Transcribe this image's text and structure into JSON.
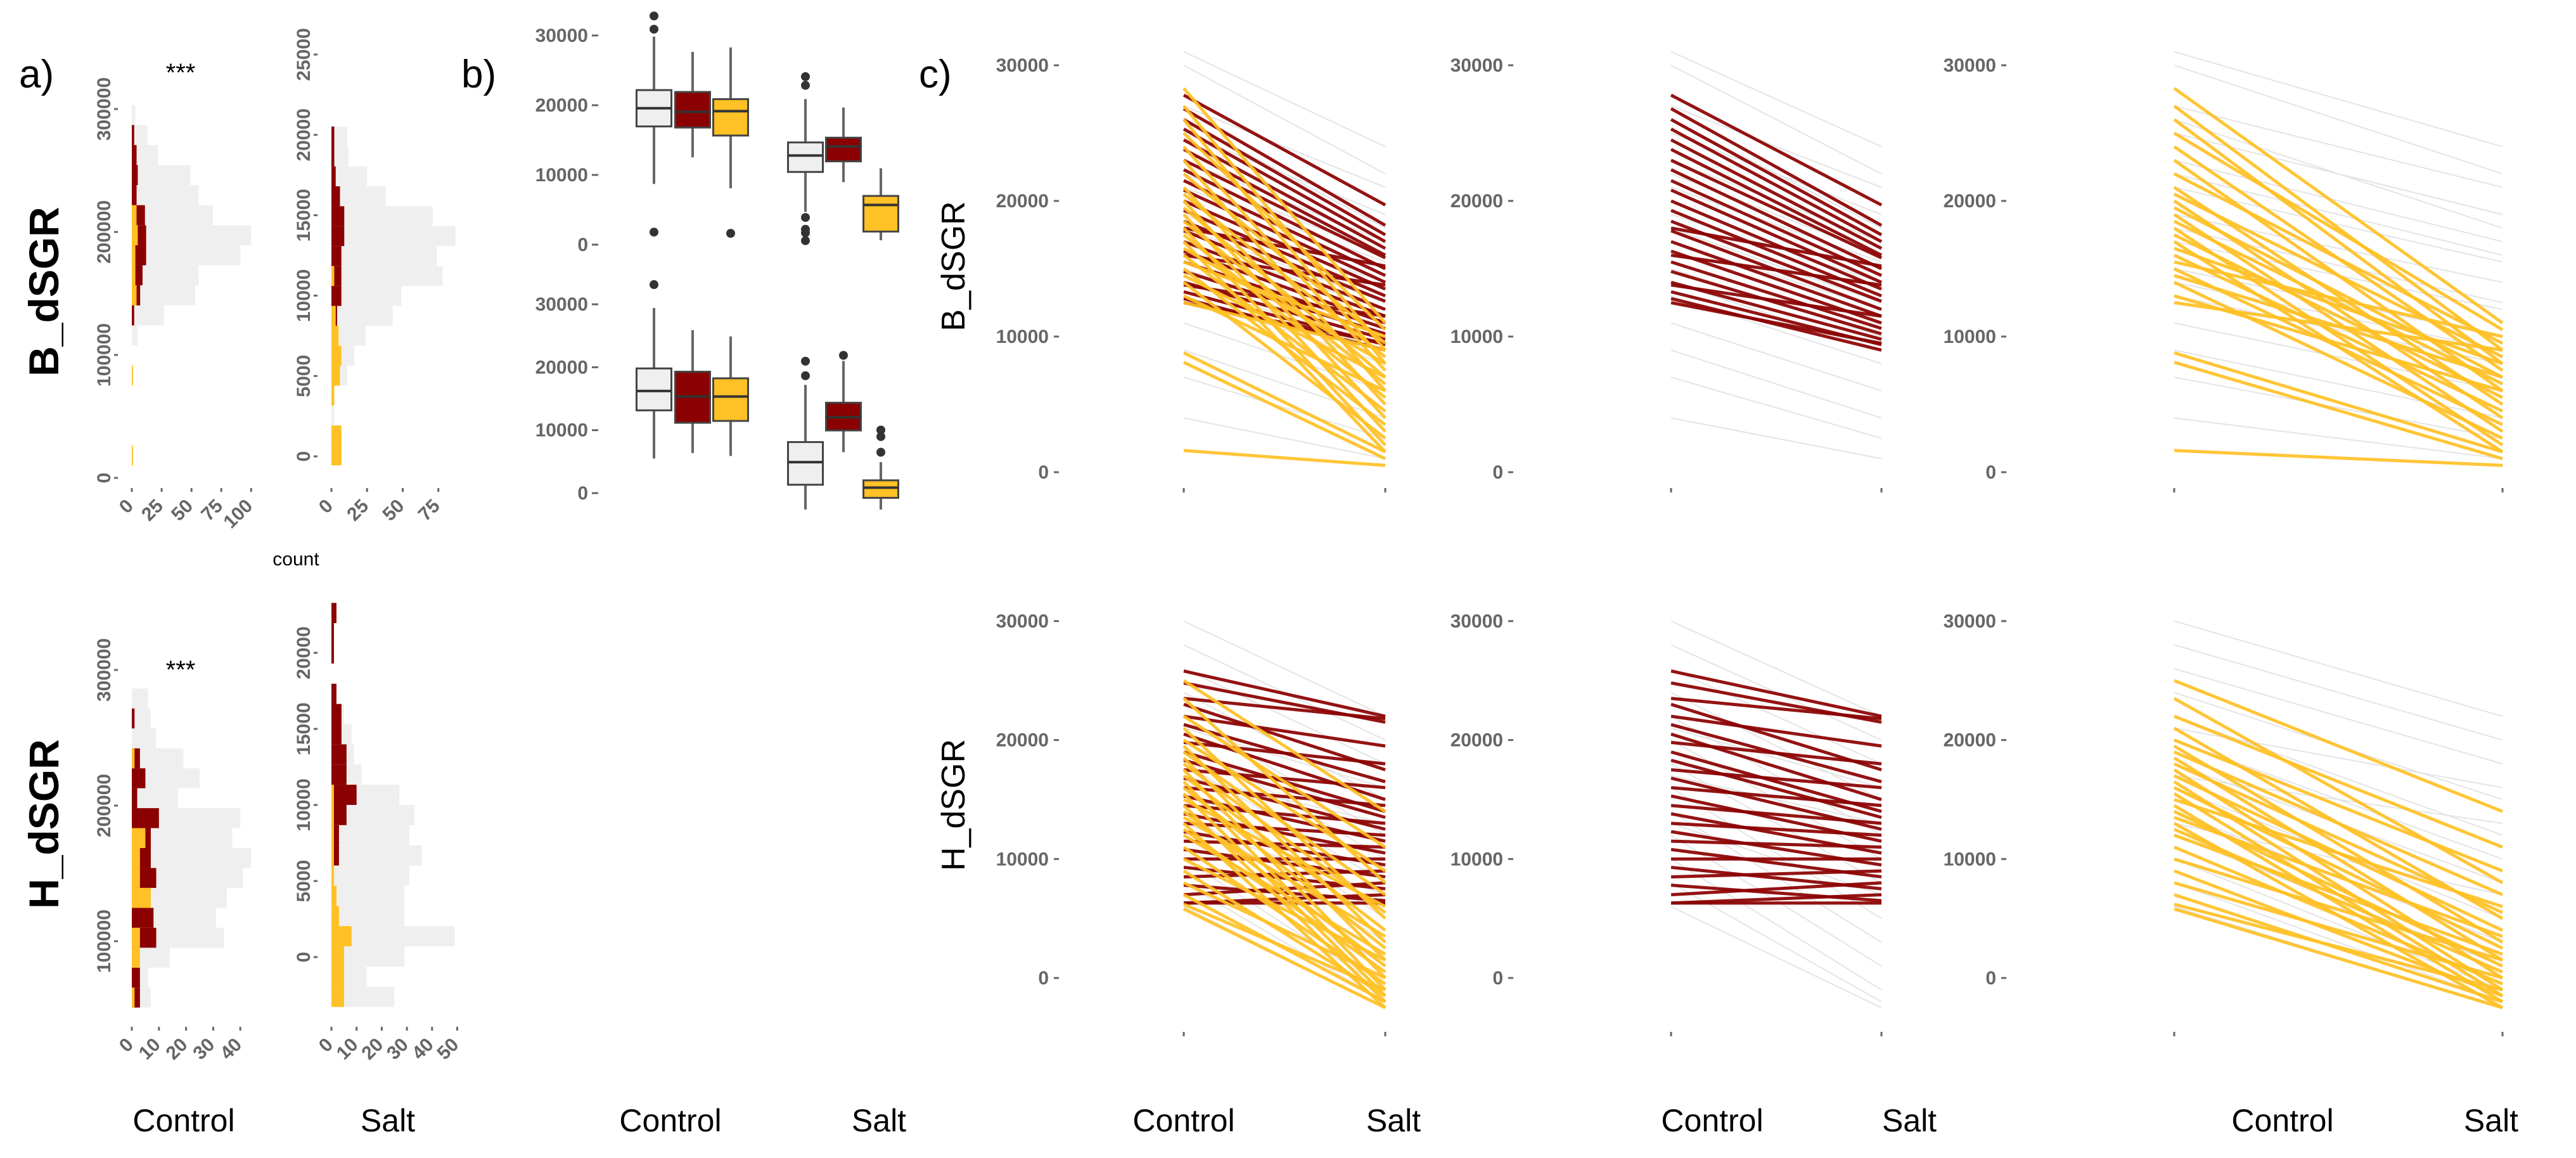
{
  "labels": {
    "panel_a": "a)",
    "panel_b": "b)",
    "panel_c": "c)",
    "signif_top": "***",
    "signif_bottom": "***",
    "count": "count",
    "row_b": "B_dSGR",
    "row_h": "H_dSGR",
    "control": "Control",
    "salt": "Salt"
  },
  "colors": {
    "all": "#efefef",
    "red": "#8b0000",
    "yellow": "#ffc125",
    "axis": "#666666"
  },
  "chart_data": [
    {
      "type": "histogram",
      "id": "a-B-control",
      "row": "B_dSGR",
      "group": "Control",
      "orientation": "horizontal",
      "y_ticks": [
        0,
        100000,
        200000,
        300000
      ],
      "x_ticks": [
        0,
        25,
        50,
        75,
        100
      ],
      "xlabel": "count",
      "bin_start": 9900,
      "bin_width": 16300,
      "series": {
        "all": [
          0,
          0,
          0,
          0,
          0,
          0,
          5,
          27,
          53,
          56,
          91,
          100,
          68,
          56,
          49,
          22,
          13,
          3
        ],
        "red": [
          0,
          0,
          0,
          0,
          0,
          0,
          0,
          2,
          7,
          9,
          12,
          12,
          11,
          4,
          5,
          4,
          2,
          0
        ],
        "yellow": [
          1,
          0,
          0,
          0,
          1,
          0,
          0,
          0,
          4,
          3,
          3,
          5,
          4,
          0,
          0,
          0,
          0,
          0
        ]
      }
    },
    {
      "type": "histogram",
      "id": "a-B-salt",
      "row": "B_dSGR",
      "group": "Salt",
      "orientation": "horizontal",
      "y_ticks": [
        0,
        5000,
        10000,
        15000,
        20000,
        25000
      ],
      "x_ticks": [
        0,
        25,
        50,
        75
      ],
      "bin_start": -560,
      "bin_width": 1240,
      "series": {
        "all": [
          0,
          2,
          2,
          2,
          11,
          16,
          24,
          43,
          49,
          78,
          74,
          87,
          71,
          38,
          25,
          12,
          11
        ],
        "red": [
          0,
          0,
          0,
          0,
          0,
          0,
          0,
          4,
          7,
          7,
          7,
          9,
          9,
          6,
          3,
          2,
          2
        ],
        "yellow": [
          7,
          7,
          0,
          2,
          6,
          7,
          5,
          3,
          0,
          2,
          0,
          0,
          0,
          0,
          0,
          0,
          0
        ]
      }
    },
    {
      "type": "histogram",
      "id": "a-H-control",
      "row": "H_dSGR",
      "group": "Control",
      "orientation": "horizontal",
      "y_ticks": [
        100000,
        200000,
        300000
      ],
      "x_ticks": [
        0,
        10,
        20,
        30,
        40
      ],
      "bin_start": 51100,
      "bin_width": 14700,
      "series": {
        "all": [
          7,
          6,
          14,
          34,
          31,
          35,
          41,
          44,
          37,
          40,
          17,
          25,
          19,
          9,
          7,
          6
        ],
        "red": [
          3,
          3,
          2,
          9,
          8,
          5,
          9,
          7,
          7,
          10,
          2,
          5,
          3,
          0,
          1,
          0
        ],
        "yellow": [
          1,
          0,
          3,
          3,
          0,
          7,
          3,
          3,
          5,
          0,
          0,
          0,
          1,
          0,
          0,
          0
        ]
      }
    },
    {
      "type": "histogram",
      "id": "a-H-salt",
      "row": "H_dSGR",
      "group": "Salt",
      "orientation": "horizontal",
      "y_ticks": [
        0,
        5000,
        10000,
        15000,
        20000
      ],
      "x_ticks": [
        0,
        10,
        20,
        30,
        40,
        50
      ],
      "bin_start": -3278,
      "bin_width": 1328,
      "series": {
        "all": [
          25,
          14,
          29,
          49,
          29,
          29,
          31,
          36,
          31,
          33,
          27,
          12,
          9,
          8,
          5,
          2,
          0,
          0,
          0,
          0
        ],
        "red": [
          0,
          0,
          0,
          0,
          0,
          0,
          0,
          3,
          3,
          6,
          10,
          6,
          6,
          4,
          4,
          2,
          0,
          1,
          1,
          2
        ],
        "yellow": [
          5,
          5,
          5,
          8,
          3,
          2,
          1,
          1,
          1,
          1,
          1,
          0,
          0,
          0,
          0,
          0,
          0,
          0,
          0,
          0
        ]
      }
    },
    {
      "type": "boxplot",
      "id": "b-B",
      "row": "B_dSGR",
      "categories": [
        "Control",
        "Salt"
      ],
      "y_ticks": [
        0,
        10000,
        20000,
        30000
      ],
      "boxes": [
        {
          "cat": "Control",
          "series": "all",
          "q1": 16960,
          "median": 19565,
          "q3": 22170,
          "lo": 8710,
          "hi": 29840,
          "outliers": [
            1800,
            30900,
            32800
          ]
        },
        {
          "cat": "Control",
          "series": "red",
          "q1": 16800,
          "median": 19040,
          "q3": 21900,
          "lo": 12520,
          "hi": 27650,
          "outliers": []
        },
        {
          "cat": "Control",
          "series": "yellow",
          "q1": 15650,
          "median": 19150,
          "q3": 20870,
          "lo": 8090,
          "hi": 28280,
          "outliers": [
            1620
          ]
        },
        {
          "cat": "Salt",
          "series": "all",
          "q1": 10430,
          "median": 12780,
          "q3": 14660,
          "lo": 4700,
          "hi": 20870,
          "outliers": [
            24100,
            22850,
            3900,
            2200,
            1700,
            570
          ]
        },
        {
          "cat": "Salt",
          "series": "red",
          "q1": 11950,
          "median": 14090,
          "q3": 15340,
          "lo": 8970,
          "hi": 19670,
          "outliers": []
        },
        {
          "cat": "Salt",
          "series": "yellow",
          "q1": 1880,
          "median": 5690,
          "q3": 6990,
          "lo": 630,
          "hi": 10960,
          "outliers": []
        }
      ]
    },
    {
      "type": "boxplot",
      "id": "b-H",
      "row": "H_dSGR",
      "categories": [
        "Control",
        "Salt"
      ],
      "y_ticks": [
        0,
        10000,
        20000,
        30000
      ],
      "boxes": [
        {
          "cat": "Control",
          "series": "all",
          "q1": 13150,
          "median": 16220,
          "q3": 19810,
          "lo": 5500,
          "hi": 29420,
          "outliers": [
            33130
          ]
        },
        {
          "cat": "Control",
          "series": "red",
          "q1": 11180,
          "median": 15350,
          "q3": 19290,
          "lo": 6370,
          "hi": 25890,
          "outliers": []
        },
        {
          "cat": "Control",
          "series": "yellow",
          "q1": 11470,
          "median": 15350,
          "q3": 18240,
          "lo": 5910,
          "hi": 24900,
          "outliers": []
        },
        {
          "cat": "Salt",
          "series": "all",
          "q1": 1330,
          "median": 4920,
          "q3": 8110,
          "lo": -2610,
          "hi": 17200,
          "outliers": [
            20960,
            18650
          ]
        },
        {
          "cat": "Salt",
          "series": "red",
          "q1": 9960,
          "median": 12050,
          "q3": 14360,
          "lo": 6490,
          "hi": 21000,
          "outliers": [
            21890
          ]
        },
        {
          "cat": "Salt",
          "series": "yellow",
          "q1": -750,
          "median": 870,
          "q3": 2030,
          "lo": -2610,
          "hi": 4920,
          "outliers": [
            6490,
            8980,
            10020
          ]
        }
      ]
    },
    {
      "type": "line",
      "id": "c-B",
      "row": "B_dSGR",
      "x": [
        "Control",
        "Salt"
      ],
      "y_ticks": [
        0,
        10000,
        20000,
        30000
      ],
      "panels": [
        "all",
        "red",
        "yellow"
      ],
      "all": [
        [
          31000,
          24000
        ],
        [
          30000,
          22000
        ],
        [
          27000,
          21000
        ],
        [
          25000,
          19000
        ],
        [
          23000,
          17000
        ],
        [
          21000,
          15500
        ],
        [
          19000,
          14000
        ],
        [
          17000,
          12000
        ],
        [
          15000,
          10000
        ],
        [
          13000,
          8000
        ],
        [
          11000,
          6000
        ],
        [
          9000,
          4000
        ],
        [
          7000,
          2500
        ],
        [
          4000,
          1000
        ],
        [
          26000,
          18000
        ],
        [
          22000,
          16000
        ],
        [
          18000,
          12500
        ],
        [
          14000,
          9000
        ]
      ],
      "red": [
        [
          27800,
          19700
        ],
        [
          26800,
          18200
        ],
        [
          26000,
          17500
        ],
        [
          25300,
          17000
        ],
        [
          24500,
          16500
        ],
        [
          23800,
          16000
        ],
        [
          23000,
          15800
        ],
        [
          22300,
          15000
        ],
        [
          21500,
          14500
        ],
        [
          20800,
          14000
        ],
        [
          20000,
          13500
        ],
        [
          19300,
          13000
        ],
        [
          18500,
          12600
        ],
        [
          17800,
          12000
        ],
        [
          17000,
          11500
        ],
        [
          16300,
          11000
        ],
        [
          15500,
          10600
        ],
        [
          14800,
          10200
        ],
        [
          14000,
          9800
        ],
        [
          13300,
          9400
        ],
        [
          12800,
          9000
        ],
        [
          12500,
          9500
        ],
        [
          13800,
          11500
        ],
        [
          16000,
          13800
        ],
        [
          18000,
          15200
        ]
      ],
      "yellow": [
        [
          28300,
          11000
        ],
        [
          27000,
          9000
        ],
        [
          26000,
          8000
        ],
        [
          25000,
          10500
        ],
        [
          24000,
          7500
        ],
        [
          23000,
          6000
        ],
        [
          22000,
          9500
        ],
        [
          21000,
          5000
        ],
        [
          20500,
          8500
        ],
        [
          20000,
          4000
        ],
        [
          19500,
          7000
        ],
        [
          19000,
          3000
        ],
        [
          18500,
          6500
        ],
        [
          18000,
          2000
        ],
        [
          17500,
          5500
        ],
        [
          17000,
          1500
        ],
        [
          16500,
          8000
        ],
        [
          16000,
          4500
        ],
        [
          15500,
          10000
        ],
        [
          15000,
          3500
        ],
        [
          14500,
          7000
        ],
        [
          14000,
          2500
        ],
        [
          13000,
          6000
        ],
        [
          12500,
          9000
        ],
        [
          8800,
          1500
        ],
        [
          8100,
          1000
        ],
        [
          1600,
          500
        ]
      ]
    },
    {
      "type": "line",
      "id": "c-H",
      "row": "H_dSGR",
      "x": [
        "Control",
        "Salt"
      ],
      "y_ticks": [
        0,
        10000,
        20000,
        30000
      ],
      "panels": [
        "all",
        "red",
        "yellow"
      ],
      "all": [
        [
          30000,
          22000
        ],
        [
          28000,
          20000
        ],
        [
          26000,
          18000
        ],
        [
          24000,
          15000
        ],
        [
          22000,
          12000
        ],
        [
          20000,
          10000
        ],
        [
          18000,
          8000
        ],
        [
          16000,
          5000
        ],
        [
          14000,
          3000
        ],
        [
          12000,
          1000
        ],
        [
          10000,
          -1000
        ],
        [
          8000,
          -2000
        ],
        [
          6000,
          -2500
        ],
        [
          21000,
          16000
        ],
        [
          17000,
          13000
        ],
        [
          13000,
          7000
        ]
      ],
      "red": [
        [
          25800,
          22000
        ],
        [
          24800,
          21500
        ],
        [
          23500,
          21800
        ],
        [
          23000,
          17500
        ],
        [
          22000,
          19500
        ],
        [
          21300,
          16500
        ],
        [
          20500,
          15000
        ],
        [
          19800,
          18000
        ],
        [
          19000,
          14000
        ],
        [
          18300,
          13500
        ],
        [
          17500,
          16000
        ],
        [
          16800,
          12500
        ],
        [
          16000,
          14500
        ],
        [
          15300,
          11500
        ],
        [
          14500,
          13000
        ],
        [
          13800,
          10500
        ],
        [
          13000,
          12000
        ],
        [
          12300,
          9500
        ],
        [
          11500,
          11000
        ],
        [
          10800,
          8500
        ],
        [
          10000,
          10000
        ],
        [
          9300,
          7500
        ],
        [
          8500,
          9000
        ],
        [
          7800,
          6500
        ],
        [
          7000,
          8000
        ],
        [
          6300,
          6300
        ],
        [
          6300,
          7000
        ]
      ],
      "yellow": [
        [
          25000,
          14000
        ],
        [
          23500,
          8000
        ],
        [
          22000,
          11000
        ],
        [
          21000,
          5000
        ],
        [
          20000,
          9000
        ],
        [
          19500,
          3000
        ],
        [
          19000,
          7000
        ],
        [
          18500,
          1500
        ],
        [
          18000,
          5500
        ],
        [
          17500,
          0
        ],
        [
          17000,
          4000
        ],
        [
          16500,
          -1000
        ],
        [
          16000,
          2500
        ],
        [
          15500,
          -1500
        ],
        [
          15000,
          6000
        ],
        [
          14500,
          -2000
        ],
        [
          14000,
          1000
        ],
        [
          13500,
          3500
        ],
        [
          13000,
          -2500
        ],
        [
          12500,
          500
        ],
        [
          12000,
          2000
        ],
        [
          11000,
          -500
        ],
        [
          10000,
          1500
        ],
        [
          9000,
          -1500
        ],
        [
          8000,
          0
        ],
        [
          7000,
          -2000
        ],
        [
          6200,
          -1000
        ],
        [
          5800,
          -2500
        ]
      ]
    }
  ]
}
